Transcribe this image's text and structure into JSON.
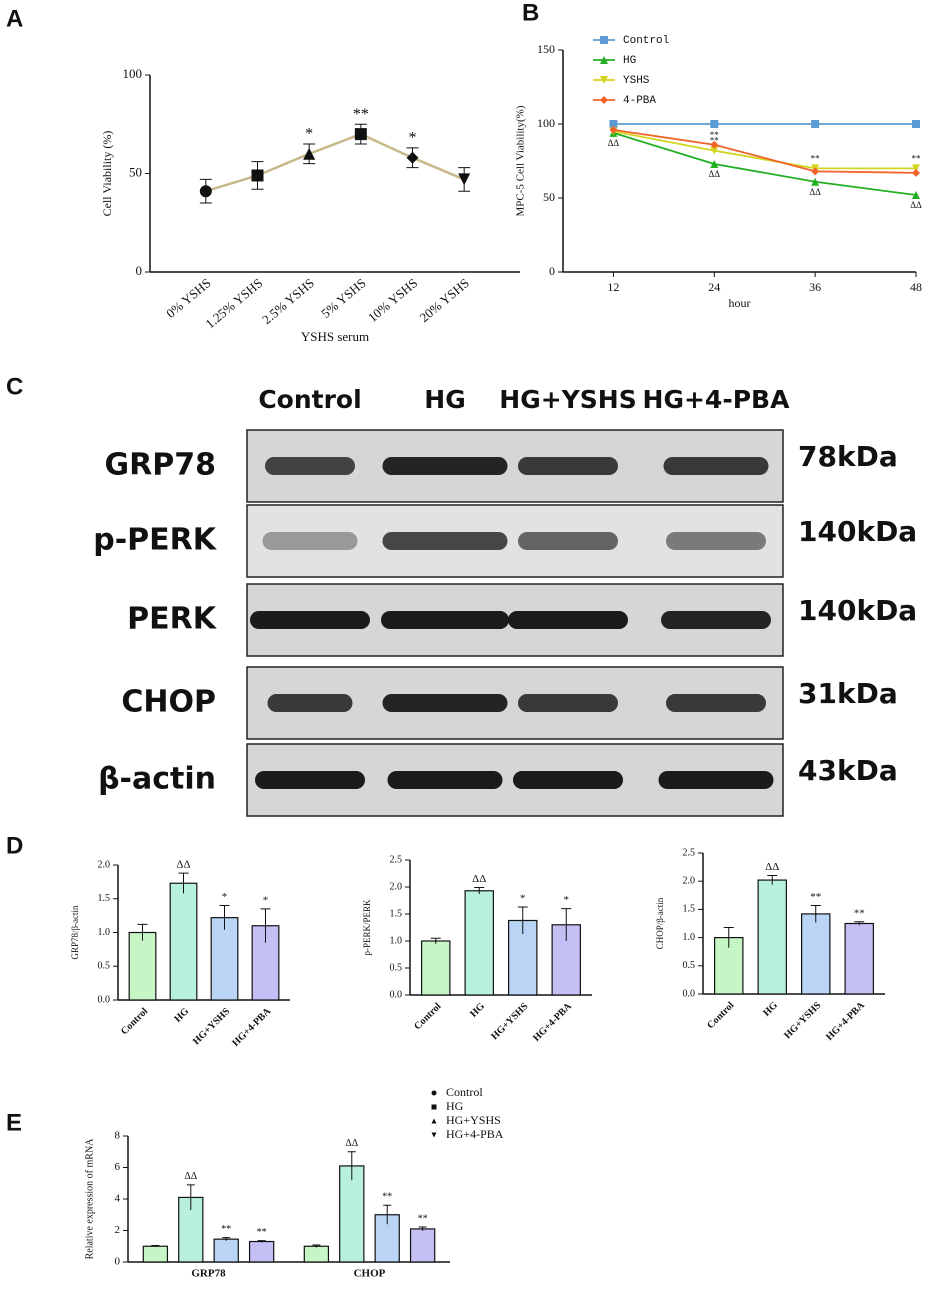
{
  "panel_labels": [
    "A",
    "B",
    "C",
    "D",
    "E"
  ],
  "chart_data": [
    {
      "type": "line",
      "y_label": "Cell Viability (%)",
      "x_label": "YSHS serum",
      "categories": [
        "0% YSHS",
        "1.25% YSHS",
        "2.5% YSHS",
        "5% YSHS",
        "10% YSHS",
        "20% YSHS"
      ],
      "values": [
        41,
        49,
        60,
        70,
        58,
        47
      ],
      "errors": [
        6,
        7,
        5,
        5,
        5,
        6
      ],
      "significance": [
        null,
        null,
        "*",
        "**",
        "*",
        null
      ],
      "markers": [
        "circle",
        "square",
        "triangle",
        "square",
        "diamond",
        "triangle-down"
      ],
      "color": "#c8b98a",
      "marker_color": "#111111",
      "ylim": [
        0,
        100
      ],
      "yticks": [
        0,
        50,
        100
      ]
    },
    {
      "type": "line",
      "y_label": "MPC-5 Cell Viability(%)",
      "x_label": "hour",
      "x": [
        12,
        24,
        36,
        48
      ],
      "xlim": [
        6,
        48
      ],
      "xticks": [
        12,
        24,
        36,
        48
      ],
      "ylim": [
        0,
        150
      ],
      "yticks": [
        0,
        50,
        100,
        150
      ],
      "legend": "top-left",
      "series": [
        {
          "name": "Control",
          "color": "#5b9bd5",
          "marker": "square",
          "values": [
            100,
            100,
            100,
            100
          ],
          "significance": [
            null,
            null,
            null,
            null
          ]
        },
        {
          "name": "HG",
          "color": "#22b022",
          "marker": "triangle",
          "values": [
            94,
            73,
            61,
            52
          ],
          "significance": [
            "ΔΔ",
            "ΔΔ",
            "ΔΔ",
            "ΔΔ"
          ]
        },
        {
          "name": "YSHS",
          "color": "#d4d41e",
          "marker": "triangle-down",
          "values": [
            95,
            82,
            70,
            70
          ],
          "significance": [
            null,
            "**",
            "**",
            "**"
          ]
        },
        {
          "name": "4-PBA",
          "color": "#f0642a",
          "marker": "diamond",
          "values": [
            96,
            86,
            68,
            67
          ],
          "significance": [
            null,
            "**",
            null,
            null
          ]
        }
      ]
    },
    {
      "type": "bar",
      "y_label": "GRP78/β-actin",
      "categories": [
        "Control",
        "HG",
        "HG+YSHS",
        "HG+4-PBA"
      ],
      "values": [
        1.0,
        1.73,
        1.22,
        1.1
      ],
      "errors": [
        0.12,
        0.15,
        0.18,
        0.25
      ],
      "significance": [
        null,
        "ΔΔ",
        "*",
        "*"
      ],
      "colors": [
        "#c6f5c6",
        "#b8f0e0",
        "#b9d4f5",
        "#c4c0f5"
      ],
      "ylim": [
        0,
        2
      ],
      "yticks": [
        {
          "value": 0,
          "label": "0.0"
        },
        0.5,
        {
          "value": 1,
          "label": "1.0"
        },
        1.5,
        {
          "value": 2,
          "label": "2.0"
        }
      ]
    },
    {
      "type": "bar",
      "y_label": "p-PERK/PERK",
      "categories": [
        "Control",
        "HG",
        "HG+YSHS",
        "HG+4-PBA"
      ],
      "values": [
        1.0,
        1.93,
        1.38,
        1.3
      ],
      "errors": [
        0.05,
        0.06,
        0.25,
        0.3
      ],
      "significance": [
        null,
        "ΔΔ",
        "*",
        "*"
      ],
      "colors": [
        "#c6f5c6",
        "#b8f0e0",
        "#b9d4f5",
        "#c4c0f5"
      ],
      "ylim": [
        0,
        2.5
      ],
      "yticks": [
        {
          "value": 0,
          "label": "0.0"
        },
        0.5,
        {
          "value": 1,
          "label": "1.0"
        },
        1.5,
        {
          "value": 2,
          "label": "2.0"
        },
        2.5
      ]
    },
    {
      "type": "bar",
      "y_label": "CHOP/β-actin",
      "categories": [
        "Control",
        "HG",
        "HG+YSHS",
        "HG+4-PBA"
      ],
      "values": [
        1.0,
        2.02,
        1.42,
        1.25
      ],
      "errors": [
        0.18,
        0.08,
        0.15,
        0.03
      ],
      "significance": [
        null,
        "ΔΔ",
        "**",
        "**"
      ],
      "colors": [
        "#c6f5c6",
        "#b8f0e0",
        "#b9d4f5",
        "#c4c0f5"
      ],
      "ylim": [
        0,
        2.5
      ],
      "yticks": [
        {
          "value": 0,
          "label": "0.0"
        },
        0.5,
        {
          "value": 1,
          "label": "1.0"
        },
        1.5,
        {
          "value": 2,
          "label": "2.0"
        },
        2.5
      ]
    },
    {
      "type": "bar",
      "y_label": "Relative expression of mRNA",
      "categories": [
        "GRP78",
        "CHOP"
      ],
      "legend": "top-right",
      "ylim": [
        0,
        8
      ],
      "yticks": [
        0,
        2,
        4,
        6,
        8
      ],
      "series": [
        {
          "name": "Control",
          "color": "#c6f5c6",
          "marker": "circle",
          "values": [
            1.0,
            1.0
          ],
          "errors": [
            0.05,
            0.08
          ],
          "significance": [
            null,
            null
          ]
        },
        {
          "name": "HG",
          "color": "#b8f0e0",
          "marker": "square",
          "values": [
            4.1,
            6.1
          ],
          "errors": [
            0.8,
            0.9
          ],
          "significance": [
            "ΔΔ",
            "ΔΔ"
          ]
        },
        {
          "name": "HG+YSHS",
          "color": "#b9d4f5",
          "marker": "triangle",
          "values": [
            1.45,
            3.0
          ],
          "errors": [
            0.1,
            0.6
          ],
          "significance": [
            "**",
            "**"
          ]
        },
        {
          "name": "HG+4-PBA",
          "color": "#c4c0f5",
          "marker": "triangle-down",
          "values": [
            1.3,
            2.1
          ],
          "errors": [
            0.06,
            0.12
          ],
          "significance": [
            "**",
            "**"
          ]
        }
      ]
    }
  ],
  "blot": {
    "columns": [
      "Control",
      "HG",
      "HG+YSHS",
      "HG+4-PBA"
    ],
    "rows": [
      {
        "protein": "GRP78",
        "size": "78kDa"
      },
      {
        "protein": "p-PERK",
        "size": "140kDa"
      },
      {
        "protein": "PERK",
        "size": "140kDa"
      },
      {
        "protein": "CHOP",
        "size": "31kDa"
      },
      {
        "protein": "β-actin",
        "size": "43kDa"
      }
    ]
  }
}
